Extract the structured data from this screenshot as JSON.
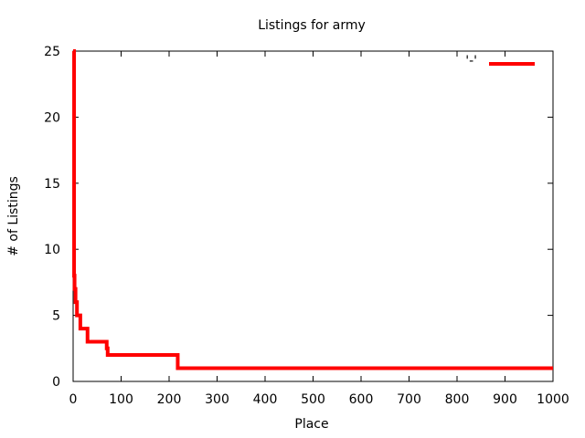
{
  "chart_data": {
    "type": "line",
    "title": "Listings for army",
    "xlabel": "Place",
    "ylabel": "# of Listings",
    "xlim": [
      0,
      1000
    ],
    "ylim": [
      0,
      25
    ],
    "x_ticks": [
      0,
      100,
      200,
      300,
      400,
      500,
      600,
      700,
      800,
      900,
      1000
    ],
    "y_ticks": [
      0,
      5,
      10,
      15,
      20,
      25
    ],
    "grid": false,
    "legend_position": "top-right",
    "series": [
      {
        "name": "'-'",
        "color": "#ff0000",
        "step": true,
        "points": [
          [
            0,
            25
          ],
          [
            2,
            8
          ],
          [
            3,
            7
          ],
          [
            5,
            6
          ],
          [
            8,
            5
          ],
          [
            15,
            4
          ],
          [
            30,
            3
          ],
          [
            70,
            2.5
          ],
          [
            72,
            2
          ],
          [
            218,
            1
          ],
          [
            1000,
            1
          ]
        ]
      }
    ]
  }
}
